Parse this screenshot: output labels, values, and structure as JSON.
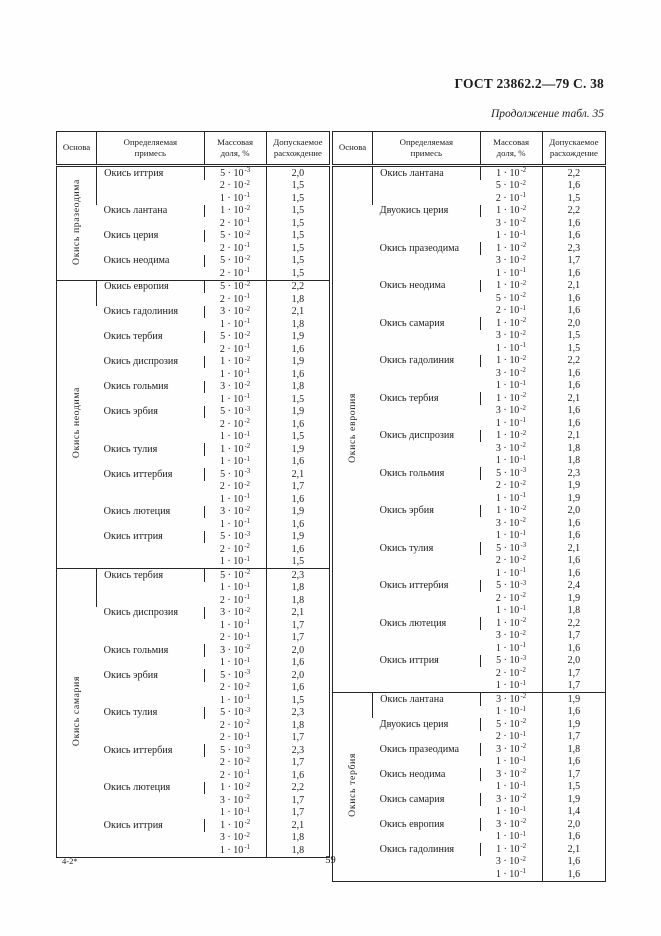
{
  "page": {
    "header_right": "ГОСТ 23862.2—79 С. 38",
    "continuation": "Продолжение табл. 35",
    "footer_left": "4-2*",
    "page_number": "59"
  },
  "column_headers": [
    "Основа",
    "Определяемая\nпримесь",
    "Массовая\nдоля,  %",
    "Допускаемое\nрасхождение"
  ],
  "tables": [
    {
      "groups": [
        {
          "base": "Окись празеодима",
          "impurities": [
            {
              "name": "Окись иттрия",
              "rows": [
                {
                  "m": "5",
                  "exp": "-3",
                  "d": "2,0"
                },
                {
                  "m": "2",
                  "exp": "-2",
                  "d": "1,5"
                },
                {
                  "m": "1",
                  "exp": "-1",
                  "d": "1,5"
                }
              ]
            },
            {
              "name": "Окись лантана",
              "rows": [
                {
                  "m": "1",
                  "exp": "-2",
                  "d": "1,5"
                },
                {
                  "m": "2",
                  "exp": "-1",
                  "d": "1,5"
                }
              ]
            },
            {
              "name": "Окись церия",
              "rows": [
                {
                  "m": "5",
                  "exp": "-2",
                  "d": "1,5"
                },
                {
                  "m": "2",
                  "exp": "-1",
                  "d": "1,5"
                }
              ]
            },
            {
              "name": "Окись неодима",
              "rows": [
                {
                  "m": "5",
                  "exp": "-2",
                  "d": "1,5"
                },
                {
                  "m": "2",
                  "exp": "-1",
                  "d": "1,5"
                }
              ]
            }
          ]
        },
        {
          "base": "Окись неодима",
          "impurities": [
            {
              "name": "Окись европия",
              "rows": [
                {
                  "m": "5",
                  "exp": "-2",
                  "d": "2,2"
                },
                {
                  "m": "2",
                  "exp": "-1",
                  "d": "1,8"
                }
              ]
            },
            {
              "name": "Окись гадолиния",
              "rows": [
                {
                  "m": "3",
                  "exp": "-2",
                  "d": "2,1"
                },
                {
                  "m": "1",
                  "exp": "-1",
                  "d": "1,8"
                }
              ]
            },
            {
              "name": "Окись тербия",
              "rows": [
                {
                  "m": "5",
                  "exp": "-2",
                  "d": "1,9"
                },
                {
                  "m": "2",
                  "exp": "-1",
                  "d": "1,6"
                }
              ]
            },
            {
              "name": "Окись диспрозия",
              "rows": [
                {
                  "m": "1",
                  "exp": "-2",
                  "d": "1,9"
                },
                {
                  "m": "1",
                  "exp": "-1",
                  "d": "1,6"
                }
              ]
            },
            {
              "name": "Окись гольмия",
              "rows": [
                {
                  "m": "3",
                  "exp": "-2",
                  "d": "1,8"
                },
                {
                  "m": "1",
                  "exp": "-1",
                  "d": "1,5"
                }
              ]
            },
            {
              "name": "Окись эрбия",
              "rows": [
                {
                  "m": "5",
                  "exp": "-3",
                  "d": "1,9"
                },
                {
                  "m": "2",
                  "exp": "-2",
                  "d": "1,6"
                },
                {
                  "m": "1",
                  "exp": "-1",
                  "d": "1,5"
                }
              ]
            },
            {
              "name": "Окись тулия",
              "rows": [
                {
                  "m": "1",
                  "exp": "-2",
                  "d": "1,9"
                },
                {
                  "m": "1",
                  "exp": "-1",
                  "d": "1,6"
                }
              ]
            },
            {
              "name": "Окись иттербия",
              "rows": [
                {
                  "m": "5",
                  "exp": "-3",
                  "d": "2,1"
                },
                {
                  "m": "2",
                  "exp": "-2",
                  "d": "1,7"
                },
                {
                  "m": "1",
                  "exp": "-1",
                  "d": "1,6"
                }
              ]
            },
            {
              "name": "Окись лютеция",
              "rows": [
                {
                  "m": "3",
                  "exp": "-2",
                  "d": "1,9"
                },
                {
                  "m": "1",
                  "exp": "-1",
                  "d": "1,6"
                }
              ]
            },
            {
              "name": "Окись иттрия",
              "rows": [
                {
                  "m": "5",
                  "exp": "-3",
                  "d": "1,9"
                },
                {
                  "m": "2",
                  "exp": "-2",
                  "d": "1,6"
                },
                {
                  "m": "1",
                  "exp": "-1",
                  "d": "1,5"
                }
              ]
            }
          ]
        },
        {
          "base": "Окись самария",
          "impurities": [
            {
              "name": "Окись тербия",
              "rows": [
                {
                  "m": "5",
                  "exp": "-2",
                  "d": "2,3"
                },
                {
                  "m": "1",
                  "exp": "-1",
                  "d": "1,8"
                },
                {
                  "m": "2",
                  "exp": "-1",
                  "d": "1,8"
                }
              ]
            },
            {
              "name": "Окись диспрозия",
              "rows": [
                {
                  "m": "3",
                  "exp": "-2",
                  "d": "2,1"
                },
                {
                  "m": "1",
                  "exp": "-1",
                  "d": "1,7"
                },
                {
                  "m": "2",
                  "exp": "-1",
                  "d": "1,7"
                }
              ]
            },
            {
              "name": "Окись гольмия",
              "rows": [
                {
                  "m": "3",
                  "exp": "-2",
                  "d": "2,0"
                },
                {
                  "m": "1",
                  "exp": "-1",
                  "d": "1,6"
                }
              ]
            },
            {
              "name": "Окись эрбия",
              "rows": [
                {
                  "m": "5",
                  "exp": "-3",
                  "d": "2,0"
                },
                {
                  "m": "2",
                  "exp": "-2",
                  "d": "1,6"
                },
                {
                  "m": "1",
                  "exp": "-1",
                  "d": "1,5"
                }
              ]
            },
            {
              "name": "Окись тулия",
              "rows": [
                {
                  "m": "5",
                  "exp": "-3",
                  "d": "2,3"
                },
                {
                  "m": "2",
                  "exp": "-2",
                  "d": "1,8"
                },
                {
                  "m": "2",
                  "exp": "-1",
                  "d": "1,7"
                }
              ]
            },
            {
              "name": "Окись иттербия",
              "rows": [
                {
                  "m": "5",
                  "exp": "-3",
                  "d": "2,3"
                },
                {
                  "m": "2",
                  "exp": "-2",
                  "d": "1,7"
                },
                {
                  "m": "2",
                  "exp": "-1",
                  "d": "1,6"
                }
              ]
            },
            {
              "name": "Окись лютеция",
              "rows": [
                {
                  "m": "1",
                  "exp": "-2",
                  "d": "2,2"
                },
                {
                  "m": "3",
                  "exp": "-2",
                  "d": "1,7"
                },
                {
                  "m": "1",
                  "exp": "-1",
                  "d": "1,7"
                }
              ]
            },
            {
              "name": "Окись иттрия",
              "rows": [
                {
                  "m": "1",
                  "exp": "-2",
                  "d": "2,1"
                },
                {
                  "m": "3",
                  "exp": "-2",
                  "d": "1,8"
                },
                {
                  "m": "1",
                  "exp": "-1",
                  "d": "1,8"
                }
              ]
            }
          ]
        }
      ]
    },
    {
      "groups": [
        {
          "base": "Окись европия",
          "impurities": [
            {
              "name": "Окись лантана",
              "rows": [
                {
                  "m": "1",
                  "exp": "-2",
                  "d": "2,2"
                },
                {
                  "m": "5",
                  "exp": "-2",
                  "d": "1,6"
                },
                {
                  "m": "2",
                  "exp": "-1",
                  "d": "1,5"
                }
              ]
            },
            {
              "name": "Двуокись церия",
              "rows": [
                {
                  "m": "1",
                  "exp": "-2",
                  "d": "2,2"
                },
                {
                  "m": "3",
                  "exp": "-2",
                  "d": "1,6"
                },
                {
                  "m": "1",
                  "exp": "-1",
                  "d": "1,6"
                }
              ]
            },
            {
              "name": "Окись празеодима",
              "rows": [
                {
                  "m": "1",
                  "exp": "-2",
                  "d": "2,3"
                },
                {
                  "m": "3",
                  "exp": "-2",
                  "d": "1,7"
                },
                {
                  "m": "1",
                  "exp": "-1",
                  "d": "1,6"
                }
              ]
            },
            {
              "name": "Окись неодима",
              "rows": [
                {
                  "m": "1",
                  "exp": "-2",
                  "d": "2,1"
                },
                {
                  "m": "5",
                  "exp": "-2",
                  "d": "1,6"
                },
                {
                  "m": "2",
                  "exp": "-1",
                  "d": "1,6"
                }
              ]
            },
            {
              "name": "Окись самария",
              "rows": [
                {
                  "m": "1",
                  "exp": "-2",
                  "d": "2,0"
                },
                {
                  "m": "3",
                  "exp": "-2",
                  "d": "1,5"
                },
                {
                  "m": "1",
                  "exp": "-1",
                  "d": "1,5"
                }
              ]
            },
            {
              "name": "Окись гадолиния",
              "rows": [
                {
                  "m": "1",
                  "exp": "-2",
                  "d": "2,2"
                },
                {
                  "m": "3",
                  "exp": "-2",
                  "d": "1,6"
                },
                {
                  "m": "1",
                  "exp": "-1",
                  "d": "1,6"
                }
              ]
            },
            {
              "name": "Окись тербия",
              "rows": [
                {
                  "m": "1",
                  "exp": "-2",
                  "d": "2,1"
                },
                {
                  "m": "3",
                  "exp": "-2",
                  "d": "1,6"
                },
                {
                  "m": "1",
                  "exp": "-1",
                  "d": "1,6"
                }
              ]
            },
            {
              "name": "Окись диспрозия",
              "rows": [
                {
                  "m": "1",
                  "exp": "-2",
                  "d": "2,1"
                },
                {
                  "m": "3",
                  "exp": "-2",
                  "d": "1,8"
                },
                {
                  "m": "1",
                  "exp": "-1",
                  "d": "1,8"
                }
              ]
            },
            {
              "name": "Окись гольмия",
              "rows": [
                {
                  "m": "5",
                  "exp": "-3",
                  "d": "2,3"
                },
                {
                  "m": "2",
                  "exp": "-2",
                  "d": "1,9"
                },
                {
                  "m": "1",
                  "exp": "-1",
                  "d": "1,9"
                }
              ]
            },
            {
              "name": "Окись эрбия",
              "rows": [
                {
                  "m": "1",
                  "exp": "-2",
                  "d": "2,0"
                },
                {
                  "m": "3",
                  "exp": "-2",
                  "d": "1,6"
                },
                {
                  "m": "1",
                  "exp": "-1",
                  "d": "1,6"
                }
              ]
            },
            {
              "name": "Окись тулия",
              "rows": [
                {
                  "m": "5",
                  "exp": "-3",
                  "d": "2,1"
                },
                {
                  "m": "2",
                  "exp": "-2",
                  "d": "1,6"
                },
                {
                  "m": "1",
                  "exp": "-1",
                  "d": "1,6"
                }
              ]
            },
            {
              "name": "Окись иттербия",
              "rows": [
                {
                  "m": "5",
                  "exp": "-3",
                  "d": "2,4"
                },
                {
                  "m": "2",
                  "exp": "-2",
                  "d": "1,9"
                },
                {
                  "m": "1",
                  "exp": "-1",
                  "d": "1,8"
                }
              ]
            },
            {
              "name": "Окись лютеция",
              "rows": [
                {
                  "m": "1",
                  "exp": "-2",
                  "d": "2,2"
                },
                {
                  "m": "3",
                  "exp": "-2",
                  "d": "1,7"
                },
                {
                  "m": "1",
                  "exp": "-1",
                  "d": "1,6"
                }
              ]
            },
            {
              "name": "Окись иттрия",
              "rows": [
                {
                  "m": "5",
                  "exp": "-3",
                  "d": "2,0"
                },
                {
                  "m": "2",
                  "exp": "-2",
                  "d": "1,7"
                },
                {
                  "m": "1",
                  "exp": "-1",
                  "d": "1,7"
                }
              ]
            }
          ]
        },
        {
          "base": "Окись тербия",
          "impurities": [
            {
              "name": "Окись лантана",
              "rows": [
                {
                  "m": "3",
                  "exp": "-2",
                  "d": "1,9"
                },
                {
                  "m": "1",
                  "exp": "-1",
                  "d": "1,6"
                }
              ]
            },
            {
              "name": "Двуокись церия",
              "rows": [
                {
                  "m": "5",
                  "exp": "-2",
                  "d": "1,9"
                },
                {
                  "m": "2",
                  "exp": "-1",
                  "d": "1,7"
                }
              ]
            },
            {
              "name": "Окись празеодима",
              "rows": [
                {
                  "m": "3",
                  "exp": "-2",
                  "d": "1,8"
                },
                {
                  "m": "1",
                  "exp": "-1",
                  "d": "1,6"
                }
              ]
            },
            {
              "name": "Окись неодима",
              "rows": [
                {
                  "m": "3",
                  "exp": "-2",
                  "d": "1,7"
                },
                {
                  "m": "1",
                  "exp": "-1",
                  "d": "1,5"
                }
              ]
            },
            {
              "name": "Окись самария",
              "rows": [
                {
                  "m": "3",
                  "exp": "-2",
                  "d": "1,9"
                },
                {
                  "m": "1",
                  "exp": "-1",
                  "d": "1,4"
                }
              ]
            },
            {
              "name": "Окись европия",
              "rows": [
                {
                  "m": "3",
                  "exp": "-2",
                  "d": "2,0"
                },
                {
                  "m": "1",
                  "exp": "-1",
                  "d": "1,6"
                }
              ]
            },
            {
              "name": "Окись гадолиния",
              "rows": [
                {
                  "m": "1",
                  "exp": "-2",
                  "d": "2,1"
                },
                {
                  "m": "3",
                  "exp": "-2",
                  "d": "1,6"
                },
                {
                  "m": "1",
                  "exp": "-1",
                  "d": "1,6"
                }
              ]
            }
          ]
        }
      ]
    }
  ]
}
